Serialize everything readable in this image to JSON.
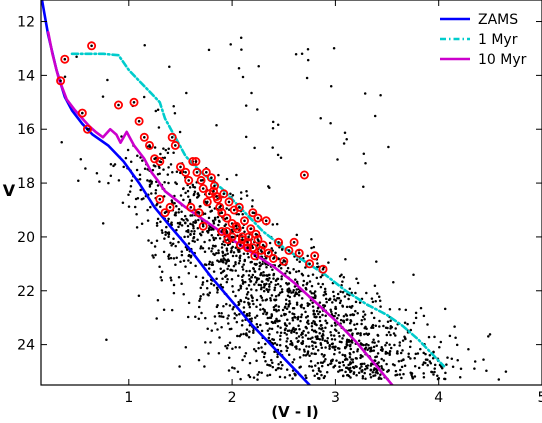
{
  "chart_data": {
    "type": "scatter",
    "title": "",
    "xlabel": "(V - I)",
    "ylabel": "V",
    "xlim": [
      0.15,
      5.0
    ],
    "ylim": [
      25.5,
      11.2
    ],
    "y_inverted": true,
    "grid": false,
    "legend_position": "top-right",
    "x_ticks": [
      1,
      2,
      3,
      4,
      5
    ],
    "y_ticks": [
      12,
      14,
      16,
      18,
      20,
      22,
      24
    ],
    "series": [
      {
        "name": "ZAMS",
        "kind": "line",
        "style": "solid",
        "color": "#0000ff",
        "x": [
          0.16,
          0.22,
          0.3,
          0.38,
          0.45,
          0.55,
          0.65,
          0.8,
          0.95,
          1.1,
          1.25,
          1.4,
          1.6,
          1.8,
          2.0,
          2.2,
          2.4,
          2.6,
          2.75
        ],
        "y": [
          11.2,
          12.5,
          13.8,
          14.8,
          15.3,
          15.8,
          16.2,
          16.6,
          17.2,
          18.0,
          18.9,
          19.6,
          20.5,
          21.5,
          22.4,
          23.3,
          24.1,
          24.9,
          25.5
        ]
      },
      {
        "name": "1 Myr",
        "kind": "line",
        "style": "dashdot",
        "color": "#00cccc",
        "x": [
          0.45,
          0.6,
          0.75,
          0.9,
          1.0,
          1.1,
          1.2,
          1.3,
          1.35,
          1.45,
          1.55,
          1.7,
          1.9,
          2.1,
          2.3,
          2.5,
          2.7,
          2.9,
          3.1,
          3.3,
          3.5,
          3.65,
          3.8,
          4.05
        ],
        "y": [
          13.2,
          13.2,
          13.2,
          13.25,
          13.8,
          14.2,
          14.6,
          15.0,
          15.6,
          16.3,
          17.0,
          17.6,
          18.2,
          19.0,
          19.8,
          20.4,
          20.9,
          21.4,
          22.0,
          22.5,
          22.9,
          23.3,
          23.8,
          24.8
        ]
      },
      {
        "name": "10 Myr",
        "kind": "line",
        "style": "solid",
        "color": "#cc00cc",
        "x": [
          0.22,
          0.26,
          0.32,
          0.4,
          0.48,
          0.55,
          0.62,
          0.68,
          0.75,
          0.82,
          0.88,
          0.92,
          0.98,
          1.05,
          1.15,
          1.22,
          1.28,
          1.35,
          1.45,
          1.55,
          1.7,
          1.85,
          2.0,
          2.2,
          2.4,
          2.6,
          2.8,
          3.0,
          3.2,
          3.4,
          3.55
        ],
        "y": [
          12.4,
          13.2,
          14.1,
          14.9,
          15.3,
          15.6,
          15.9,
          16.1,
          16.3,
          16.0,
          16.2,
          16.5,
          16.1,
          16.6,
          17.1,
          17.6,
          17.9,
          18.3,
          18.6,
          18.9,
          19.3,
          19.7,
          20.1,
          20.6,
          21.1,
          21.7,
          22.4,
          23.1,
          23.9,
          24.8,
          25.5
        ]
      }
    ],
    "highlighted_points": {
      "marker": "red ring",
      "color": "#ff0000",
      "x": [
        0.38,
        0.34,
        0.64,
        0.9,
        1.05,
        1.1,
        1.15,
        1.2,
        0.55,
        0.6,
        1.3,
        1.42,
        1.45,
        1.5,
        1.55,
        1.58,
        1.62,
        1.66,
        1.7,
        1.72,
        1.75,
        1.78,
        1.8,
        1.83,
        1.86,
        1.88,
        1.9,
        1.92,
        1.95,
        1.97,
        2.0,
        2.02,
        2.05,
        2.07,
        2.1,
        2.12,
        2.15,
        2.18,
        2.2,
        2.23,
        2.25,
        2.3,
        2.35,
        2.4,
        2.45,
        2.5,
        2.55,
        2.6,
        2.65,
        2.7,
        2.75,
        2.8,
        2.88,
        1.6,
        1.65,
        1.68,
        1.72,
        1.76,
        1.82,
        1.9,
        1.96,
        2.04,
        2.08,
        2.16,
        2.22,
        2.28,
        2.33,
        1.25,
        1.3,
        1.35,
        1.4,
        1.85,
        1.95,
        2.0,
        2.1,
        2.15,
        2.2,
        2.25
      ],
      "y": [
        13.4,
        14.2,
        12.9,
        15.1,
        15.0,
        15.7,
        16.3,
        16.6,
        15.4,
        16.0,
        17.2,
        16.3,
        16.6,
        17.4,
        17.6,
        17.9,
        17.2,
        17.6,
        17.9,
        18.2,
        17.6,
        18.4,
        17.8,
        18.1,
        18.6,
        18.9,
        19.1,
        18.4,
        19.3,
        18.7,
        19.5,
        19.0,
        19.7,
        18.9,
        20.0,
        19.4,
        20.2,
        19.7,
        20.4,
        19.9,
        20.1,
        20.3,
        20.6,
        20.8,
        20.2,
        20.9,
        20.5,
        20.2,
        20.6,
        17.7,
        21.0,
        20.7,
        21.2,
        18.9,
        17.2,
        19.1,
        19.6,
        18.7,
        18.3,
        19.8,
        20.1,
        19.6,
        20.3,
        20.0,
        20.7,
        20.5,
        19.4,
        17.1,
        18.6,
        19.1,
        18.9,
        18.5,
        19.8,
        20.0,
        20.1,
        20.4,
        19.1,
        19.3
      ]
    },
    "background_points": {
      "marker": "black dot",
      "color": "#000000",
      "count": 1800,
      "distribution": "band spanning x 0.3-4.8 and V 12.5-25.3 concentrated along the 10 Myr track, densest near x 2.0-3.0, V 20.5-23.5"
    }
  }
}
